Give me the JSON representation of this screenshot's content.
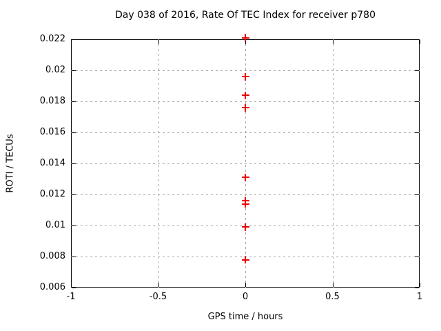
{
  "colors": {
    "background": "#ffffff",
    "axis": "#000000",
    "grid": "#a6a6a6",
    "marker": "#ee0000",
    "text": "#000000"
  },
  "chart_data": {
    "type": "scatter",
    "title": "Day 038 of 2016, Rate Of TEC Index for receiver p780",
    "xlabel": "GPS time / hours",
    "ylabel": "ROTI / TECUs",
    "xlim": [
      -1,
      1
    ],
    "ylim": [
      0.006,
      0.022
    ],
    "grid": true,
    "legend_position": "none",
    "x_ticks": {
      "values": [
        -1,
        -0.5,
        0,
        0.5,
        1
      ],
      "labels": [
        "-1",
        "-0.5",
        "0",
        "0.5",
        "1"
      ]
    },
    "y_ticks": {
      "values": [
        0.006,
        0.008,
        0.01,
        0.012,
        0.014,
        0.016,
        0.018,
        0.02,
        0.022
      ],
      "labels": [
        "0.006",
        "0.008",
        "0.01",
        "0.012",
        "0.014",
        "0.016",
        "0.018",
        "0.02",
        "0.022"
      ]
    },
    "series": [
      {
        "name": "ROTI",
        "marker": "plus",
        "color": "#ee0000",
        "points": [
          {
            "x": 0,
            "y": 0.0221
          },
          {
            "x": 0,
            "y": 0.0196
          },
          {
            "x": 0,
            "y": 0.0184
          },
          {
            "x": 0,
            "y": 0.0176
          },
          {
            "x": 0,
            "y": 0.0131
          },
          {
            "x": 0,
            "y": 0.0116
          },
          {
            "x": 0,
            "y": 0.0114
          },
          {
            "x": 0,
            "y": 0.0099
          },
          {
            "x": 0,
            "y": 0.0078
          }
        ]
      }
    ]
  }
}
